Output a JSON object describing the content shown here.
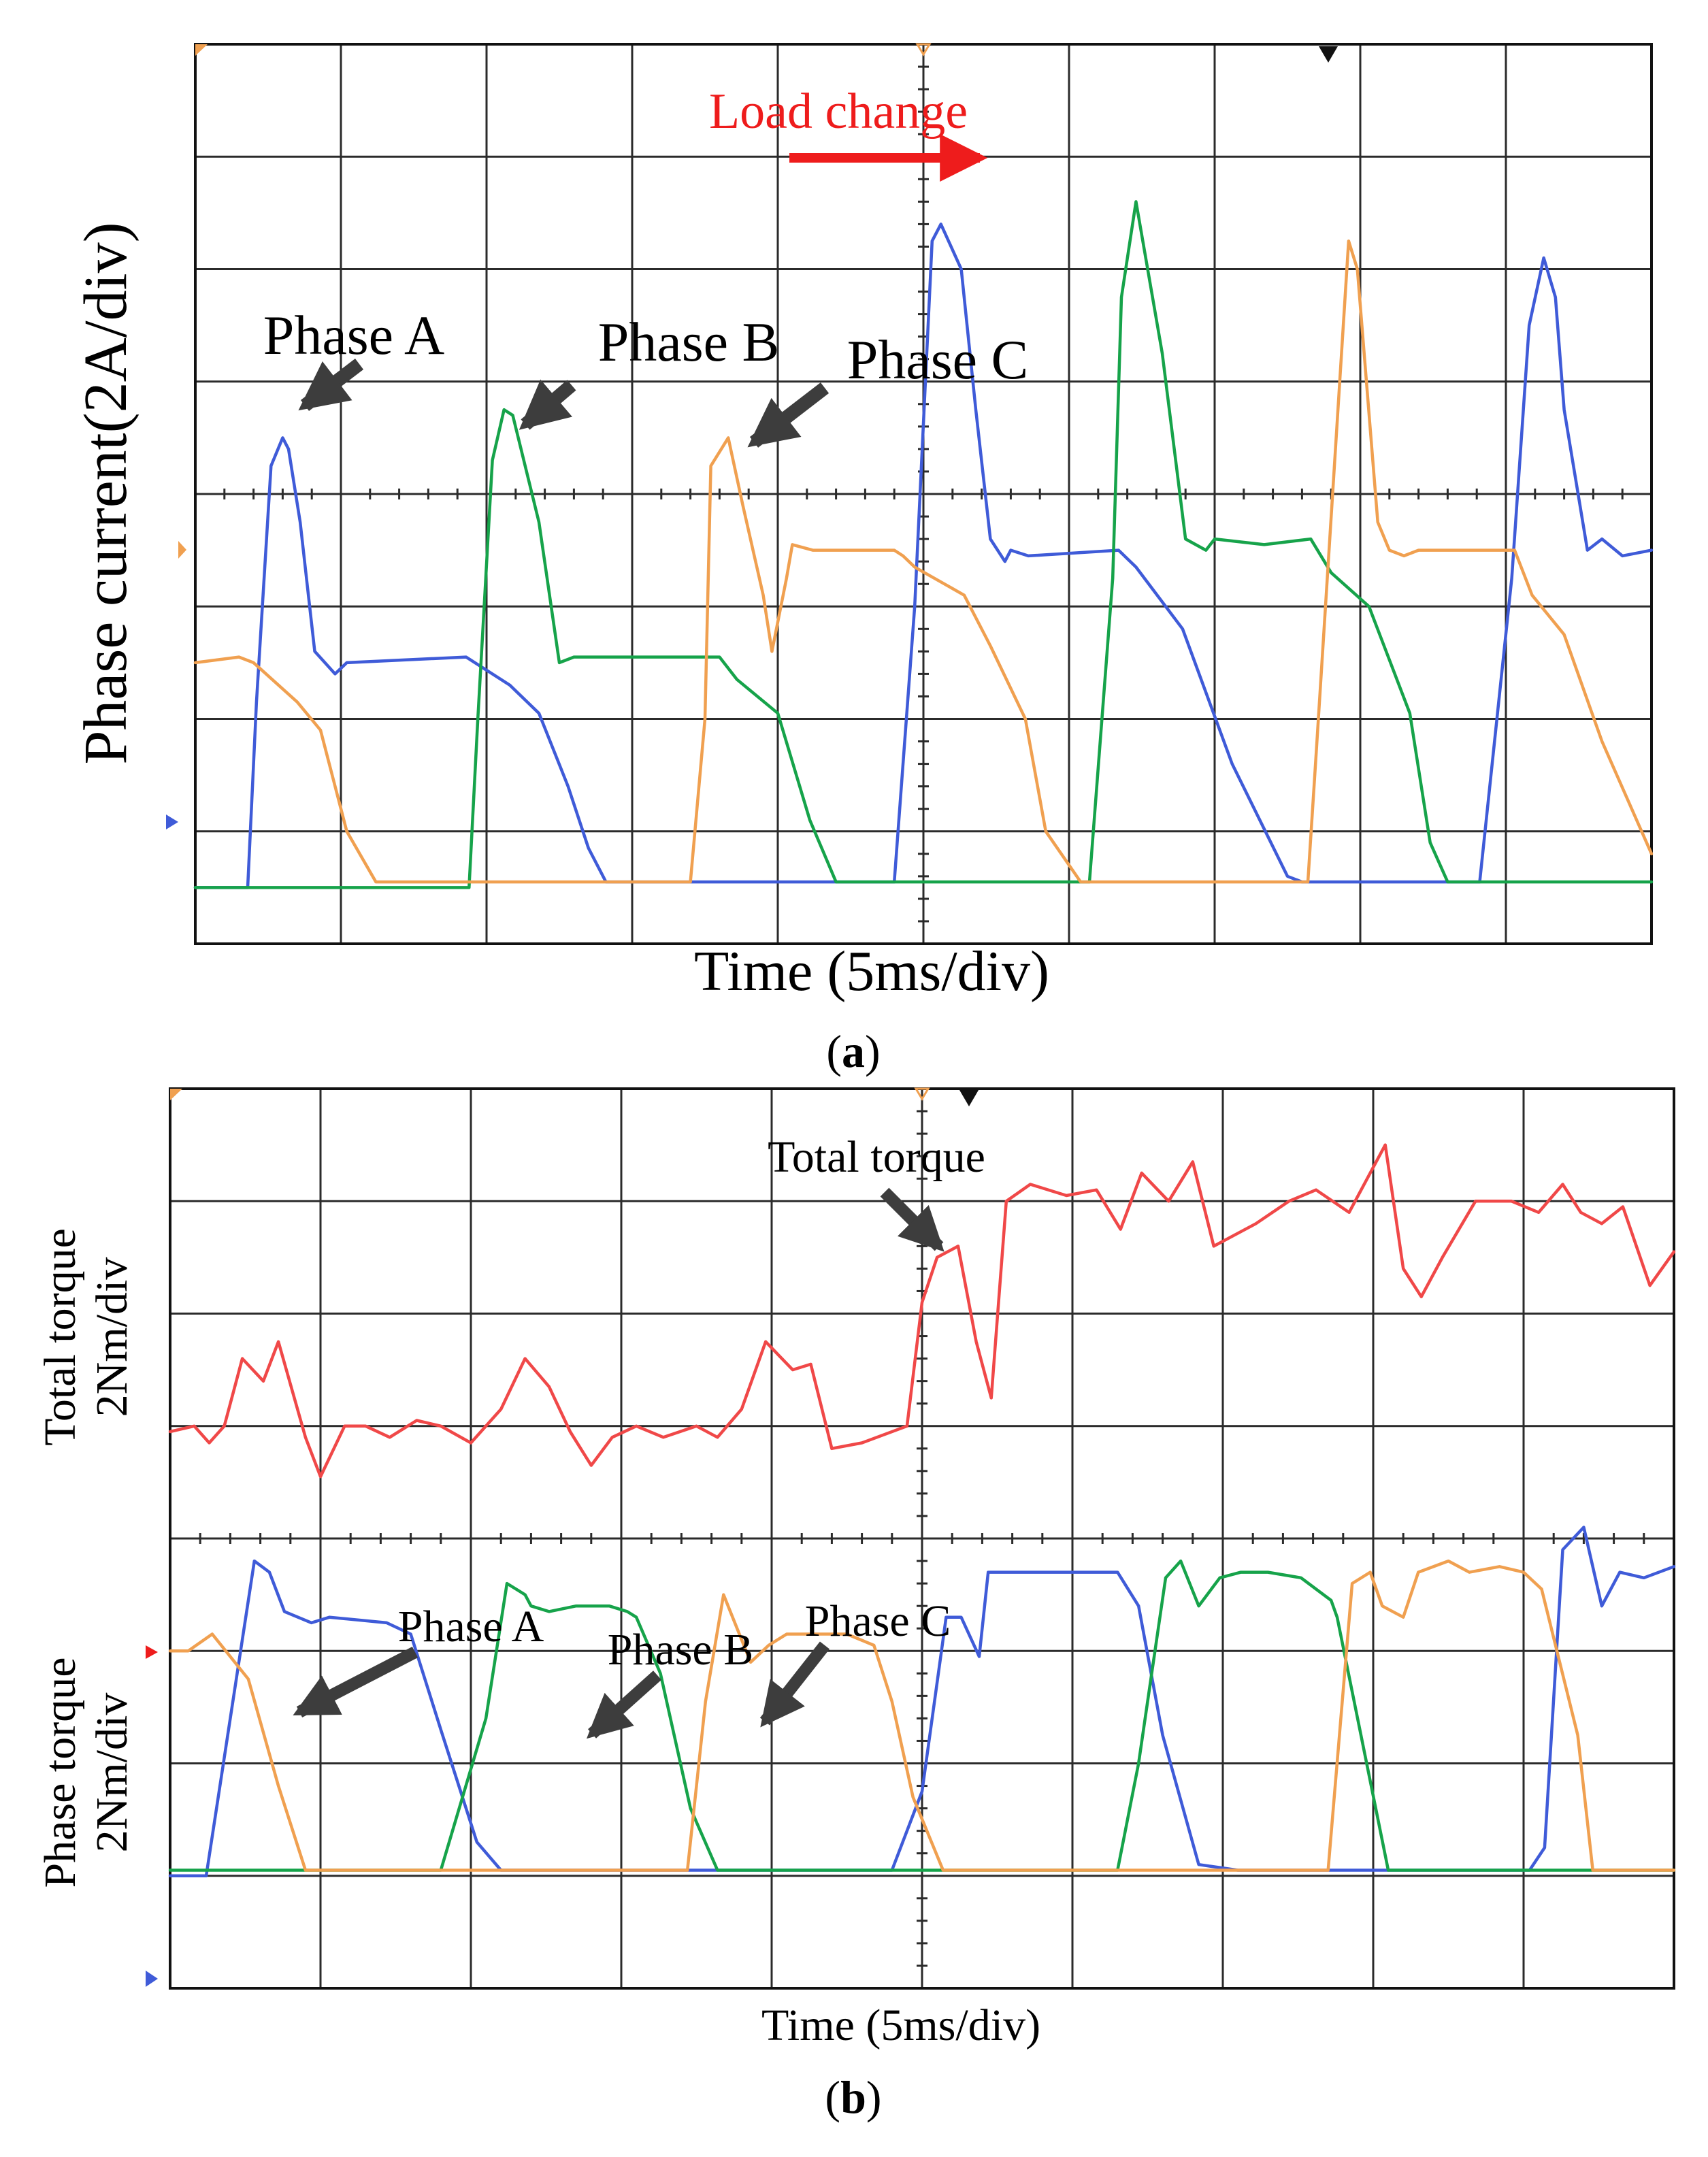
{
  "colors": {
    "phase_a": "#3f5bd8",
    "phase_b": "#16a34a",
    "phase_c": "#f0a050",
    "total_torque": "#f04848",
    "load_change": "#ee1c1c",
    "arrow": "#3d3d3d",
    "grid": "#2b2b2b"
  },
  "chart_data": [
    {
      "type": "line",
      "panel": "(a)",
      "panel_letter": "a",
      "title": "",
      "xlabel": "Time (5ms/div)",
      "ylabel": "Phase current(2A/div)",
      "x_unit": "ms",
      "y_unit": "A",
      "xlim": [
        0,
        50
      ],
      "ylim": [
        -1,
        15
      ],
      "grid": true,
      "annotations": {
        "load_change": "Load change",
        "phase_a": "Phase A",
        "phase_b": "Phase B",
        "phase_c": "Phase C"
      },
      "series": [
        {
          "name": "Phase A",
          "color_key": "phase_a",
          "x": [
            0,
            1.8,
            2.1,
            2.6,
            3.0,
            3.2,
            3.6,
            4.1,
            4.8,
            5.2,
            9.3,
            10.8,
            11.8,
            12.8,
            13.5,
            14.1,
            15.0,
            19.0,
            24.0,
            24.7,
            25.3,
            25.6,
            26.3,
            26.8,
            27.3,
            27.8,
            28.0,
            28.6,
            31.7,
            32.3,
            33.9,
            35.6,
            37.5,
            38.0,
            44.1,
            45.2,
            45.8,
            46.3,
            46.7,
            47.0,
            47.8,
            48.3,
            49.0,
            50
          ],
          "y": [
            0,
            0,
            3.3,
            7.5,
            8.0,
            7.8,
            6.5,
            4.2,
            3.8,
            4.0,
            4.1,
            3.6,
            3.1,
            1.8,
            0.7,
            0.1,
            0.1,
            0.1,
            0.1,
            5.0,
            11.5,
            11.8,
            11.0,
            8.5,
            6.2,
            5.8,
            6.0,
            5.9,
            6.0,
            5.7,
            4.6,
            2.2,
            0.2,
            0.1,
            0.1,
            5.5,
            10.0,
            11.2,
            10.5,
            8.5,
            6.0,
            6.2,
            5.9,
            6.0
          ]
        },
        {
          "name": "Phase B",
          "color_key": "phase_b",
          "x": [
            0,
            9.4,
            9.7,
            10.2,
            10.6,
            10.9,
            11.8,
            12.5,
            13.0,
            13.8,
            18.0,
            18.6,
            20.0,
            21.1,
            22.0,
            22.5,
            23.3,
            24.0,
            30.7,
            31.5,
            31.8,
            32.3,
            33.2,
            34.0,
            34.7,
            35.0,
            36.7,
            38.3,
            39.0,
            40.3,
            41.7,
            42.4,
            43.0,
            50
          ],
          "y": [
            0,
            0,
            3.0,
            7.6,
            8.5,
            8.4,
            6.5,
            4.0,
            4.1,
            4.1,
            4.1,
            3.7,
            3.1,
            1.2,
            0.1,
            0.1,
            0.1,
            0.1,
            0.1,
            5.5,
            10.5,
            12.2,
            9.5,
            6.2,
            6.0,
            6.2,
            6.1,
            6.2,
            5.6,
            5.0,
            3.1,
            0.8,
            0.1,
            0.1
          ]
        },
        {
          "name": "Phase C",
          "color_key": "phase_c",
          "x": [
            0,
            1.5,
            2.0,
            3.5,
            4.3,
            5.2,
            6.2,
            6.5,
            10.0,
            17.0,
            17.5,
            17.7,
            18.3,
            18.8,
            19.5,
            19.8,
            20.3,
            20.5,
            21.2,
            24.0,
            24.3,
            24.7,
            26.4,
            27.3,
            28.5,
            29.2,
            30.4,
            32.0,
            38.2,
            38.5,
            39.6,
            39.9,
            40.6,
            41.0,
            41.5,
            42.0,
            45.3,
            45.9,
            47.0,
            48.3,
            50
          ],
          "y": [
            4.0,
            4.1,
            4.0,
            3.3,
            2.8,
            1.0,
            0.1,
            0.1,
            0.1,
            0.1,
            3.0,
            7.5,
            8.0,
            6.8,
            5.2,
            4.2,
            5.5,
            6.1,
            6.0,
            6.0,
            5.9,
            5.7,
            5.2,
            4.3,
            3.0,
            1.0,
            0.1,
            0.1,
            0.1,
            2.5,
            11.5,
            11.0,
            6.5,
            6.0,
            5.9,
            6.0,
            6.0,
            5.2,
            4.5,
            2.6,
            0.6
          ]
        }
      ]
    },
    {
      "type": "line",
      "panel": "(b)",
      "panel_letter": "b",
      "title": "",
      "xlabel": "Time (5ms/div)",
      "ylabel_upper": "Total torque 2Nm/div",
      "ylabel_upper_lines": [
        "Total torque",
        "2Nm/div"
      ],
      "ylabel_lower": "Phase torque 2Nm/div",
      "ylabel_lower_lines": [
        "Phase torque",
        "2Nm/div"
      ],
      "x_unit": "ms",
      "y_unit": "Nm",
      "xlim": [
        0,
        50
      ],
      "ylim": [
        -2,
        14
      ],
      "grid": true,
      "annotations": {
        "total_torque": "Total torque",
        "phase_a": "Phase A",
        "phase_b": "Phase B",
        "phase_c": "Phase C"
      },
      "series": [
        {
          "name": "Total torque",
          "color_key": "total_torque",
          "x": [
            0,
            0.8,
            1.3,
            1.8,
            2.4,
            3.1,
            3.6,
            4.5,
            5.0,
            5.8,
            6.5,
            7.3,
            8.2,
            9.0,
            10.0,
            11.0,
            11.8,
            12.6,
            13.3,
            14.0,
            14.7,
            15.5,
            16.4,
            17.5,
            18.2,
            19.0,
            19.8,
            20.7,
            21.3,
            22.0,
            23.0,
            24.5,
            25.0,
            25.5,
            26.2,
            26.8,
            27.3,
            27.8,
            28.6,
            29.8,
            30.8,
            31.6,
            32.3,
            33.2,
            34.0,
            34.7,
            35.4,
            36.1,
            37.2,
            38.1,
            39.2,
            40.4,
            41.0,
            41.6,
            42.3,
            43.4,
            44.6,
            45.5,
            46.3,
            46.9,
            47.6,
            48.3,
            49.2,
            50
          ],
          "y": [
            7.9,
            8.0,
            7.7,
            8.0,
            9.2,
            8.8,
            9.5,
            7.8,
            7.1,
            8.0,
            8.0,
            7.8,
            8.1,
            8.0,
            7.7,
            8.3,
            9.2,
            8.7,
            7.9,
            7.3,
            7.8,
            8.0,
            7.8,
            8.0,
            7.8,
            8.3,
            9.5,
            9.0,
            9.1,
            7.6,
            7.7,
            8.0,
            10.2,
            11.0,
            11.2,
            9.5,
            8.5,
            12.0,
            12.3,
            12.1,
            12.2,
            11.5,
            12.5,
            12.0,
            12.7,
            11.2,
            11.4,
            11.6,
            12.0,
            12.2,
            11.8,
            13.0,
            10.8,
            10.3,
            11.0,
            12.0,
            12.0,
            11.8,
            12.3,
            11.8,
            11.6,
            11.9,
            10.5,
            11.1
          ]
        },
        {
          "name": "Phase A",
          "color_key": "phase_a",
          "x": [
            0,
            1.2,
            2.8,
            3.3,
            3.8,
            4.7,
            5.3,
            7.2,
            8.0,
            9.0,
            10.2,
            11.0,
            11.6,
            12.0,
            24.0,
            25.0,
            25.8,
            26.3,
            26.9,
            27.2,
            28.3,
            30.0,
            31.5,
            32.2,
            33.0,
            34.2,
            35.5,
            36.0,
            45.2,
            45.7,
            46.3,
            47.0,
            47.6,
            48.2,
            49.0,
            50
          ],
          "y": [
            0,
            0,
            5.6,
            5.4,
            4.7,
            4.5,
            4.6,
            4.5,
            4.3,
            2.6,
            0.6,
            0.1,
            0.1,
            0.1,
            0.1,
            1.5,
            4.6,
            4.6,
            3.9,
            5.4,
            5.4,
            5.4,
            5.4,
            4.8,
            2.5,
            0.2,
            0.1,
            0.1,
            0.1,
            0.5,
            5.8,
            6.2,
            4.8,
            5.4,
            5.3,
            5.5
          ]
        },
        {
          "name": "Phase B",
          "color_key": "phase_b",
          "x": [
            0,
            5.3,
            9.0,
            10.5,
            11.2,
            11.8,
            12.0,
            12.6,
            13.5,
            14.6,
            15.2,
            15.5,
            16.3,
            17.3,
            18.2,
            20.0,
            25.0,
            31.5,
            32.2,
            33.1,
            33.6,
            34.2,
            34.9,
            35.6,
            36.5,
            37.6,
            38.6,
            38.8,
            40.5,
            41.6,
            44.0,
            50
          ],
          "y": [
            0.1,
            0.1,
            0.1,
            2.8,
            5.2,
            5.0,
            4.8,
            4.7,
            4.8,
            4.8,
            4.7,
            4.6,
            3.6,
            1.2,
            0.1,
            0.1,
            0.1,
            0.1,
            2.0,
            5.3,
            5.6,
            4.8,
            5.3,
            5.4,
            5.4,
            5.3,
            4.9,
            4.6,
            0.1,
            0.1,
            0.1,
            0.1
          ]
        },
        {
          "name": "Phase C",
          "color_key": "phase_c",
          "x": [
            0,
            0.6,
            1.4,
            2.6,
            3.6,
            4.5,
            5.5,
            17.2,
            17.8,
            18.4,
            19.3,
            19.9,
            20.5,
            21.1,
            21.8,
            22.5,
            23.4,
            24.0,
            24.7,
            25.7,
            26.0,
            38.5,
            39.3,
            39.9,
            40.3,
            41.0,
            41.5,
            42.5,
            43.2,
            44.2,
            45.0,
            45.6,
            46.8,
            47.3,
            50
          ],
          "y": [
            4.0,
            4.0,
            4.3,
            3.5,
            1.6,
            0.1,
            0.1,
            0.1,
            3.1,
            5.0,
            3.8,
            4.1,
            4.3,
            4.3,
            4.3,
            4.3,
            4.1,
            3.1,
            1.4,
            0.1,
            0.1,
            0.1,
            5.2,
            5.4,
            4.8,
            4.6,
            5.4,
            5.6,
            5.4,
            5.5,
            5.4,
            5.1,
            2.5,
            0.1,
            0.1
          ]
        }
      ]
    }
  ]
}
